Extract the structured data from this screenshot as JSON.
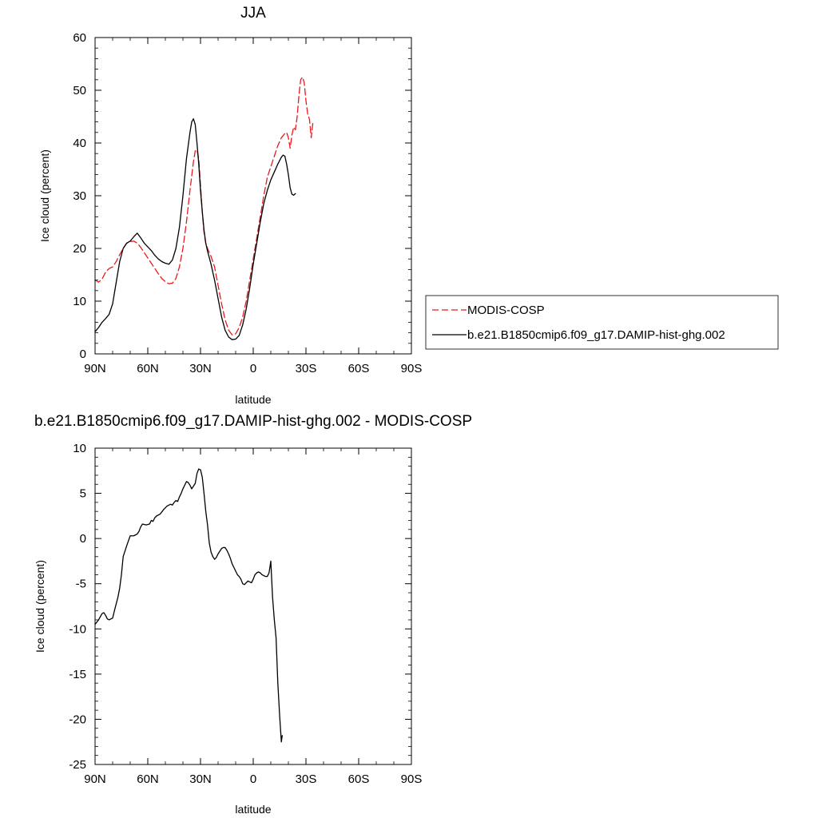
{
  "chart_data": [
    {
      "type": "line",
      "title": "JJA",
      "xlabel": "latitude",
      "ylabel": "Ice cloud (percent)",
      "xlim": [
        90,
        -90
      ],
      "ylim": [
        0,
        60
      ],
      "x_ticks": [
        {
          "value": 90,
          "label": "90N"
        },
        {
          "value": 60,
          "label": "60N"
        },
        {
          "value": 30,
          "label": "30N"
        },
        {
          "value": 0,
          "label": "0"
        },
        {
          "value": -30,
          "label": "30S"
        },
        {
          "value": -60,
          "label": "60S"
        },
        {
          "value": -90,
          "label": "90S"
        }
      ],
      "y_ticks": [
        0,
        10,
        20,
        30,
        40,
        50,
        60
      ],
      "legend_position": "right",
      "series": [
        {
          "name": "MODIS-COSP",
          "color": "#e8191c",
          "dash": "dashed",
          "points": [
            [
              90,
              14.0
            ],
            [
              88,
              13.6
            ],
            [
              86,
              14.2
            ],
            [
              84,
              15.5
            ],
            [
              82,
              16.2
            ],
            [
              80,
              16.5
            ],
            [
              78,
              17.5
            ],
            [
              76,
              18.8
            ],
            [
              74,
              20.0
            ],
            [
              72,
              21.0
            ],
            [
              70,
              21.3
            ],
            [
              68,
              21.4
            ],
            [
              66,
              21.0
            ],
            [
              64,
              20.2
            ],
            [
              62,
              19.2
            ],
            [
              60,
              18.2
            ],
            [
              58,
              17.2
            ],
            [
              56,
              16.2
            ],
            [
              54,
              15.2
            ],
            [
              52,
              14.3
            ],
            [
              50,
              13.7
            ],
            [
              48,
              13.3
            ],
            [
              46,
              13.4
            ],
            [
              44,
              14.3
            ],
            [
              42,
              16.5
            ],
            [
              40,
              20.0
            ],
            [
              38,
              25.0
            ],
            [
              36,
              31.0
            ],
            [
              34,
              36.5
            ],
            [
              33,
              38.5
            ],
            [
              32,
              38.7
            ],
            [
              31,
              37.0
            ],
            [
              30,
              32.0
            ],
            [
              29,
              27.0
            ],
            [
              28,
              23.0
            ],
            [
              27,
              21.0
            ],
            [
              26,
              20.0
            ],
            [
              24,
              18.5
            ],
            [
              22,
              16.5
            ],
            [
              20,
              13.0
            ],
            [
              18,
              9.5
            ],
            [
              16,
              6.5
            ],
            [
              14,
              4.5
            ],
            [
              12,
              3.6
            ],
            [
              10,
              3.8
            ],
            [
              8,
              5.0
            ],
            [
              6,
              7.0
            ],
            [
              4,
              10.0
            ],
            [
              2,
              14.0
            ],
            [
              0,
              18.0
            ],
            [
              -2,
              22.0
            ],
            [
              -4,
              26.0
            ],
            [
              -6,
              30.0
            ],
            [
              -8,
              33.5
            ],
            [
              -10,
              35.5
            ],
            [
              -12,
              37.5
            ],
            [
              -14,
              39.5
            ],
            [
              -16,
              41.0
            ],
            [
              -18,
              41.8
            ],
            [
              -19,
              42.0
            ],
            [
              -20,
              41.0
            ],
            [
              -21,
              39.0
            ],
            [
              -22,
              41.5
            ],
            [
              -23,
              43.0
            ],
            [
              -24,
              42.5
            ],
            [
              -25,
              45.0
            ],
            [
              -26,
              49.0
            ],
            [
              -27,
              52.0
            ],
            [
              -28,
              52.5
            ],
            [
              -29,
              51.5
            ],
            [
              -30,
              48.0
            ],
            [
              -31,
              45.5
            ],
            [
              -32,
              44.5
            ],
            [
              -33,
              41.0
            ],
            [
              -34,
              44.0
            ]
          ]
        },
        {
          "name": "b.e21.B1850cmip6.f09_g17.DAMIP-hist-ghg.002",
          "color": "#000000",
          "dash": "solid",
          "points": [
            [
              90,
              4.2
            ],
            [
              88,
              5.0
            ],
            [
              86,
              6.0
            ],
            [
              84,
              6.7
            ],
            [
              82,
              7.5
            ],
            [
              80,
              9.5
            ],
            [
              78,
              13.5
            ],
            [
              76,
              17.5
            ],
            [
              74,
              20.0
            ],
            [
              72,
              21.0
            ],
            [
              70,
              21.4
            ],
            [
              68,
              22.2
            ],
            [
              66,
              22.9
            ],
            [
              64,
              22.0
            ],
            [
              62,
              21.0
            ],
            [
              60,
              20.3
            ],
            [
              58,
              19.6
            ],
            [
              56,
              18.7
            ],
            [
              54,
              18.0
            ],
            [
              52,
              17.5
            ],
            [
              50,
              17.2
            ],
            [
              48,
              17.0
            ],
            [
              46,
              17.8
            ],
            [
              44,
              20.0
            ],
            [
              42,
              24.0
            ],
            [
              40,
              30.0
            ],
            [
              38,
              37.0
            ],
            [
              36,
              42.0
            ],
            [
              35,
              44.0
            ],
            [
              34,
              44.6
            ],
            [
              33,
              43.5
            ],
            [
              32,
              40.0
            ],
            [
              31,
              36.0
            ],
            [
              30,
              31.0
            ],
            [
              29,
              27.0
            ],
            [
              28,
              23.5
            ],
            [
              27,
              21.0
            ],
            [
              26,
              19.5
            ],
            [
              24,
              17.0
            ],
            [
              22,
              14.0
            ],
            [
              20,
              10.5
            ],
            [
              18,
              7.0
            ],
            [
              16,
              4.5
            ],
            [
              14,
              3.2
            ],
            [
              12,
              2.7
            ],
            [
              10,
              2.8
            ],
            [
              8,
              3.5
            ],
            [
              6,
              5.5
            ],
            [
              4,
              8.5
            ],
            [
              2,
              12.5
            ],
            [
              0,
              17.0
            ],
            [
              -2,
              21.0
            ],
            [
              -4,
              25.0
            ],
            [
              -6,
              28.5
            ],
            [
              -8,
              31.0
            ],
            [
              -10,
              33.0
            ],
            [
              -12,
              34.5
            ],
            [
              -14,
              36.0
            ],
            [
              -16,
              37.3
            ],
            [
              -17,
              37.7
            ],
            [
              -18,
              37.5
            ],
            [
              -19,
              36.0
            ],
            [
              -20,
              34.0
            ],
            [
              -21,
              31.5
            ],
            [
              -22,
              30.3
            ],
            [
              -23,
              30.1
            ],
            [
              -24,
              30.4
            ]
          ]
        }
      ]
    },
    {
      "type": "line",
      "title": "b.e21.B1850cmip6.f09_g17.DAMIP-hist-ghg.002 - MODIS-COSP",
      "xlabel": "latitude",
      "ylabel": "Ice cloud (percent)",
      "xlim": [
        90,
        -90
      ],
      "ylim": [
        -25,
        10
      ],
      "x_ticks": [
        {
          "value": 90,
          "label": "90N"
        },
        {
          "value": 60,
          "label": "60N"
        },
        {
          "value": 30,
          "label": "30N"
        },
        {
          "value": 0,
          "label": "0"
        },
        {
          "value": -30,
          "label": "30S"
        },
        {
          "value": -60,
          "label": "60S"
        },
        {
          "value": -90,
          "label": "90S"
        }
      ],
      "y_ticks": [
        -25,
        -20,
        -15,
        -10,
        -5,
        0,
        5,
        10
      ],
      "series": [
        {
          "color": "#000000",
          "dash": "solid",
          "points": [
            [
              90,
              -9.5
            ],
            [
              88,
              -9.0
            ],
            [
              86,
              -8.3
            ],
            [
              85,
              -8.2
            ],
            [
              84,
              -8.5
            ],
            [
              83,
              -8.9
            ],
            [
              82,
              -9.0
            ],
            [
              80,
              -8.8
            ],
            [
              79,
              -8.0
            ],
            [
              77,
              -6.5
            ],
            [
              76,
              -5.5
            ],
            [
              75,
              -4.0
            ],
            [
              74,
              -2.0
            ],
            [
              72,
              -0.8
            ],
            [
              70,
              0.3
            ],
            [
              68,
              0.3
            ],
            [
              66,
              0.5
            ],
            [
              65,
              0.8
            ],
            [
              64,
              1.3
            ],
            [
              63,
              1.6
            ],
            [
              61,
              1.5
            ],
            [
              59,
              1.6
            ],
            [
              58,
              2.0
            ],
            [
              57,
              1.9
            ],
            [
              56,
              2.3
            ],
            [
              55,
              2.5
            ],
            [
              53,
              2.7
            ],
            [
              51,
              3.2
            ],
            [
              49,
              3.6
            ],
            [
              47,
              3.8
            ],
            [
              46,
              3.7
            ],
            [
              45,
              4.0
            ],
            [
              44,
              4.2
            ],
            [
              43,
              4.1
            ],
            [
              42,
              4.6
            ],
            [
              41,
              5.0
            ],
            [
              40,
              5.5
            ],
            [
              39,
              5.9
            ],
            [
              38,
              6.3
            ],
            [
              37,
              6.2
            ],
            [
              36,
              5.9
            ],
            [
              35,
              5.5
            ],
            [
              34,
              5.8
            ],
            [
              33,
              6.1
            ],
            [
              32,
              7.2
            ],
            [
              31,
              7.7
            ],
            [
              30,
              7.6
            ],
            [
              29,
              6.8
            ],
            [
              28,
              5.0
            ],
            [
              27,
              3.0
            ],
            [
              26,
              1.5
            ],
            [
              25,
              -0.5
            ],
            [
              24,
              -1.5
            ],
            [
              23,
              -2.0
            ],
            [
              22,
              -2.3
            ],
            [
              21,
              -2.1
            ],
            [
              20,
              -1.7
            ],
            [
              19,
              -1.4
            ],
            [
              18,
              -1.1
            ],
            [
              17,
              -1.0
            ],
            [
              16,
              -1.0
            ],
            [
              15,
              -1.3
            ],
            [
              14,
              -1.7
            ],
            [
              13,
              -2.2
            ],
            [
              12,
              -2.8
            ],
            [
              11,
              -3.2
            ],
            [
              10,
              -3.6
            ],
            [
              9,
              -4.0
            ],
            [
              8,
              -4.2
            ],
            [
              7,
              -4.5
            ],
            [
              6,
              -5.0
            ],
            [
              5,
              -5.1
            ],
            [
              4,
              -4.9
            ],
            [
              3,
              -4.7
            ],
            [
              2,
              -4.8
            ],
            [
              1,
              -4.9
            ],
            [
              0,
              -4.5
            ],
            [
              -1,
              -4.0
            ],
            [
              -2,
              -3.8
            ],
            [
              -3,
              -3.7
            ],
            [
              -4,
              -3.8
            ],
            [
              -5,
              -4.0
            ],
            [
              -6,
              -4.1
            ],
            [
              -7,
              -4.2
            ],
            [
              -8,
              -4.2
            ],
            [
              -9,
              -3.8
            ],
            [
              -10,
              -2.5
            ],
            [
              -11,
              -6.5
            ],
            [
              -12,
              -9.0
            ],
            [
              -13,
              -11.0
            ],
            [
              -14,
              -16.0
            ],
            [
              -15,
              -19.5
            ],
            [
              -15.5,
              -21.0
            ],
            [
              -16,
              -22.5
            ],
            [
              -16.5,
              -21.8
            ]
          ]
        }
      ]
    }
  ]
}
